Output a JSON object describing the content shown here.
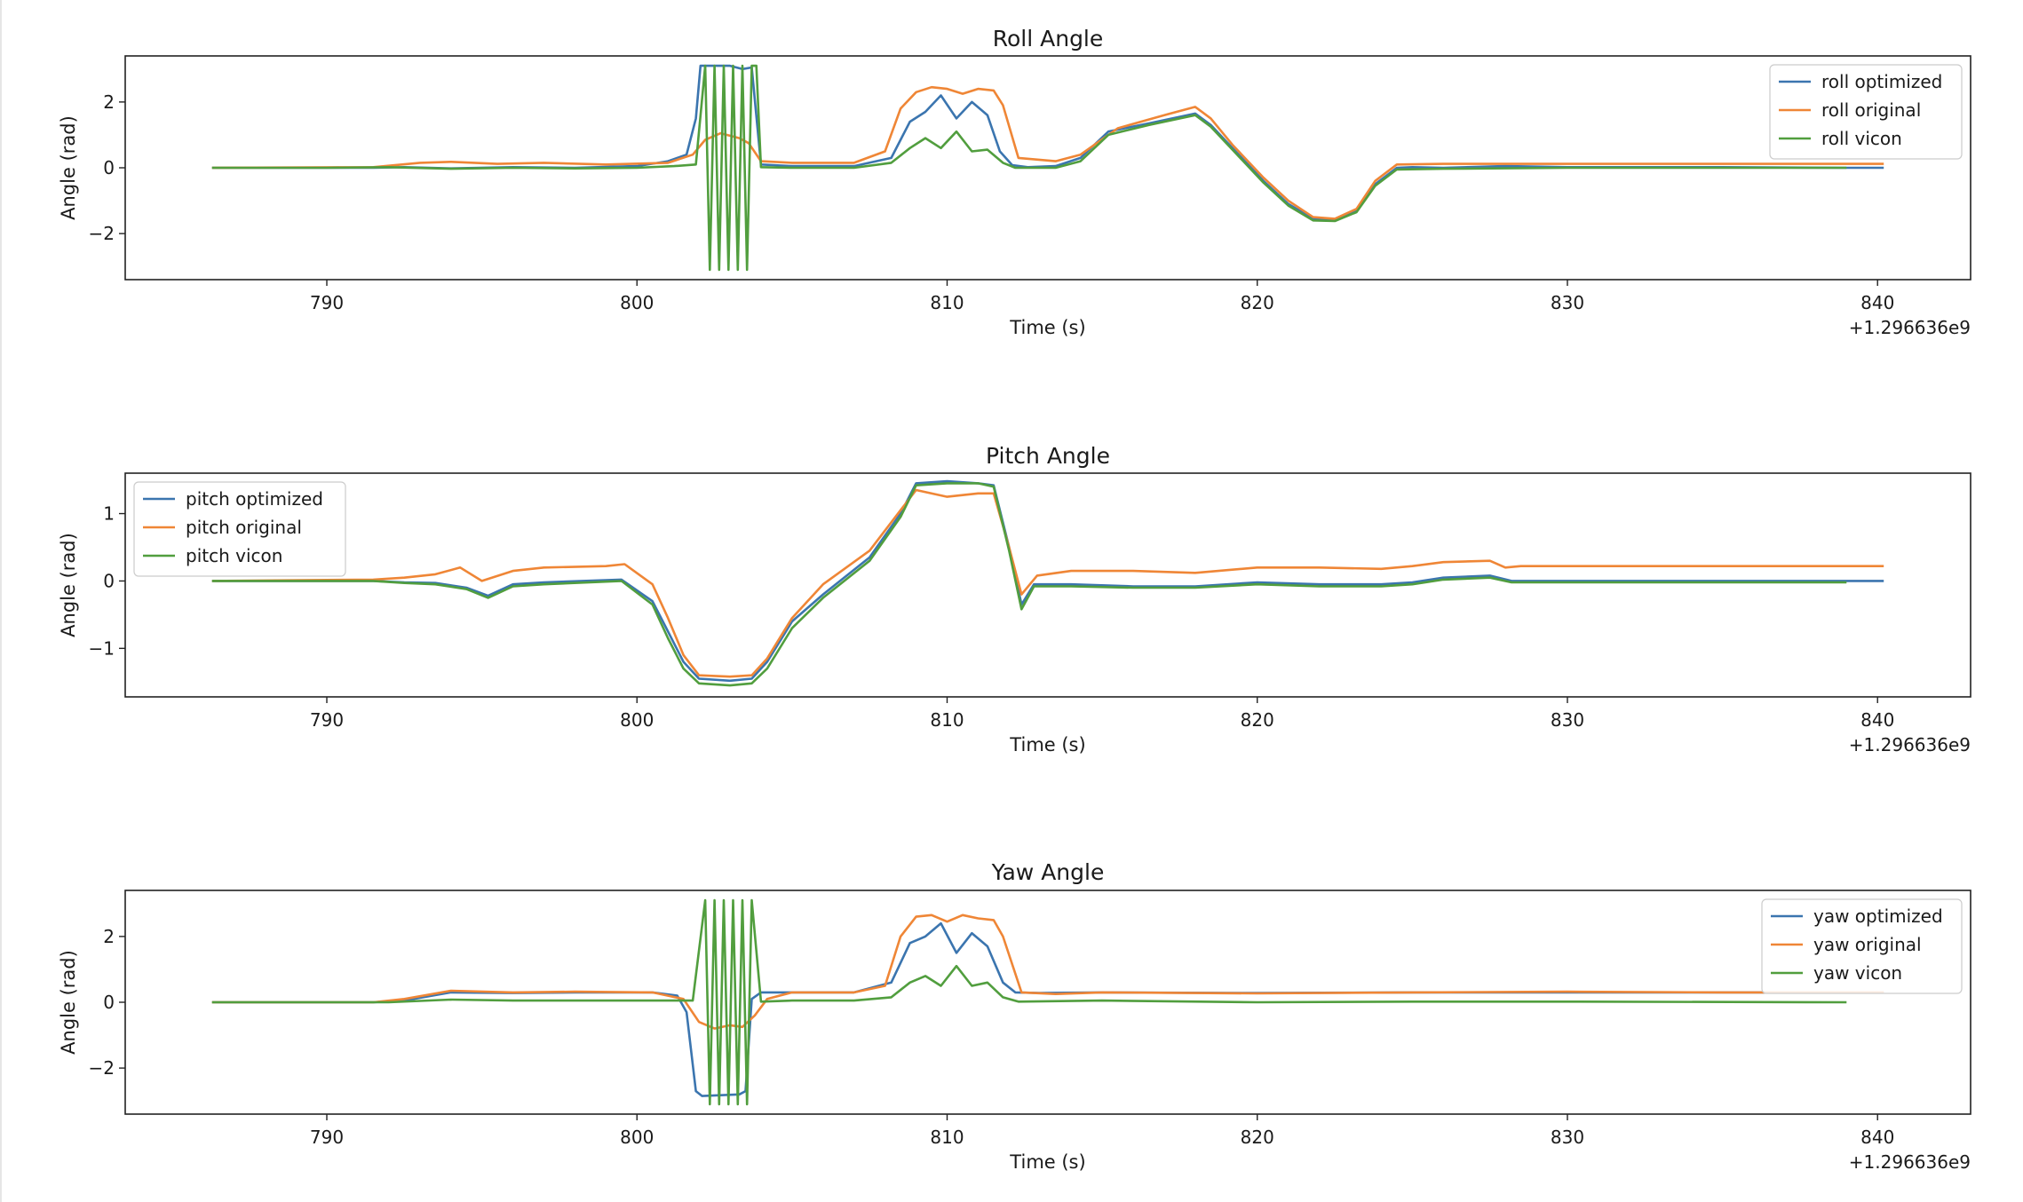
{
  "figure": {
    "x_offset_label": "+1.296636e9"
  },
  "colors": {
    "optimized": "#3b75af",
    "original": "#ef8636",
    "vicon": "#519e3e"
  },
  "chart_data": [
    {
      "type": "line",
      "title": "Roll Angle",
      "xlabel": "Time (s)",
      "ylabel": "Angle (rad)",
      "xlim": [
        783.5,
        843.0
      ],
      "ylim": [
        -3.4,
        3.4
      ],
      "xticks": [
        790,
        800,
        810,
        820,
        830,
        840
      ],
      "yticks": [
        {
          "v": 2,
          "label": "2"
        },
        {
          "v": 0,
          "label": "0"
        },
        {
          "v": -2,
          "label": "−2"
        }
      ],
      "legend": "top-right",
      "series": [
        {
          "name": "roll optimized",
          "role": "optimized",
          "x": [
            786.3,
            790,
            791.5,
            792.5,
            794,
            796,
            798,
            800,
            801,
            801.6,
            801.9,
            802.05,
            802.2,
            803.0,
            803.4,
            803.7,
            804.0,
            805,
            807,
            808.2,
            808.8,
            809.3,
            809.8,
            810.3,
            810.8,
            811.3,
            811.7,
            812.1,
            812.6,
            813.5,
            814.3,
            815.2,
            816.5,
            818.0,
            818.5,
            819.2,
            820.2,
            821.0,
            821.8,
            822.5,
            823.2,
            823.8,
            824.5,
            825.0,
            826.0,
            828.0,
            830.0,
            835.0,
            839.0,
            840.2
          ],
          "y": [
            0,
            0,
            0,
            0.02,
            -0.02,
            0.02,
            0,
            0.05,
            0.2,
            0.4,
            1.5,
            3.1,
            3.1,
            3.1,
            3.0,
            3.05,
            0.1,
            0.05,
            0.05,
            0.3,
            1.4,
            1.7,
            2.2,
            1.5,
            2.0,
            1.6,
            0.5,
            0.08,
            0.02,
            0.05,
            0.3,
            1.1,
            1.35,
            1.65,
            1.3,
            0.6,
            -0.4,
            -1.1,
            -1.55,
            -1.58,
            -1.3,
            -0.5,
            0,
            0.02,
            0,
            0.05,
            0.02,
            0.02,
            0,
            0
          ]
        },
        {
          "name": "roll original",
          "role": "original",
          "x": [
            786.3,
            791.5,
            793.0,
            794,
            795.5,
            797,
            799,
            801,
            801.8,
            802.2,
            802.7,
            803.3,
            803.6,
            804.0,
            805,
            807,
            808.0,
            808.5,
            809.0,
            809.5,
            810.0,
            810.5,
            811.0,
            811.5,
            811.8,
            812.3,
            813.5,
            814.3,
            815.5,
            817.0,
            818.0,
            818.5,
            819.2,
            820.2,
            821.0,
            821.8,
            822.5,
            823.2,
            823.8,
            824.5,
            826.0,
            830.0,
            835.0,
            840.2
          ],
          "y": [
            0,
            0.02,
            0.15,
            0.18,
            0.12,
            0.15,
            0.1,
            0.15,
            0.4,
            0.85,
            1.05,
            0.9,
            0.75,
            0.2,
            0.15,
            0.15,
            0.5,
            1.8,
            2.3,
            2.45,
            2.4,
            2.25,
            2.4,
            2.35,
            1.9,
            0.3,
            0.2,
            0.4,
            1.2,
            1.6,
            1.85,
            1.5,
            0.7,
            -0.3,
            -1.0,
            -1.5,
            -1.55,
            -1.25,
            -0.4,
            0.1,
            0.12,
            0.12,
            0.12,
            0.12
          ]
        },
        {
          "name": "roll vicon",
          "role": "vicon",
          "x": [
            786.3,
            790,
            792,
            794,
            796,
            798,
            800,
            801.2,
            801.9,
            802.2,
            802.35,
            802.5,
            802.65,
            802.8,
            802.95,
            803.1,
            803.25,
            803.4,
            803.55,
            803.7,
            803.85,
            804.0,
            805,
            807,
            808.2,
            808.8,
            809.3,
            809.8,
            810.3,
            810.8,
            811.3,
            811.8,
            812.2,
            813.5,
            814.3,
            815.2,
            816.5,
            818.0,
            818.5,
            819.2,
            820.2,
            821.0,
            821.8,
            822.5,
            823.2,
            823.8,
            824.5,
            826,
            830,
            835,
            839.0
          ],
          "y": [
            0,
            0,
            0.02,
            -0.03,
            0,
            -0.02,
            0,
            0.05,
            0.1,
            3.1,
            -3.1,
            3.1,
            -3.1,
            3.1,
            -3.1,
            3.1,
            -3.1,
            3.1,
            -3.1,
            3.1,
            3.1,
            0.02,
            0,
            0,
            0.15,
            0.6,
            0.9,
            0.6,
            1.1,
            0.5,
            0.55,
            0.15,
            0,
            0,
            0.2,
            1.0,
            1.3,
            1.6,
            1.25,
            0.55,
            -0.45,
            -1.15,
            -1.6,
            -1.62,
            -1.35,
            -0.55,
            -0.05,
            -0.03,
            0,
            0,
            0
          ]
        }
      ]
    },
    {
      "type": "line",
      "title": "Pitch Angle",
      "xlabel": "Time (s)",
      "ylabel": "Angle (rad)",
      "xlim": [
        783.5,
        843.0
      ],
      "ylim": [
        -1.72,
        1.6
      ],
      "xticks": [
        790,
        800,
        810,
        820,
        830,
        840
      ],
      "yticks": [
        {
          "v": 1,
          "label": "1"
        },
        {
          "v": 0,
          "label": "0"
        },
        {
          "v": -1,
          "label": "−1"
        }
      ],
      "legend": "top-left",
      "series": [
        {
          "name": "pitch optimized",
          "role": "optimized",
          "x": [
            786.3,
            791.5,
            792.5,
            793.5,
            794.5,
            795.2,
            796,
            797,
            799.5,
            800.5,
            801.0,
            801.5,
            802.0,
            803.0,
            803.7,
            804.2,
            805.0,
            806.0,
            807.5,
            808.5,
            809.0,
            810.0,
            811.0,
            811.5,
            812.0,
            812.4,
            812.8,
            814.0,
            816.0,
            818.0,
            820.0,
            822.0,
            824.0,
            825.0,
            826.0,
            827.5,
            828.2,
            830.0,
            840.2
          ],
          "y": [
            0,
            0,
            -0.02,
            -0.03,
            -0.1,
            -0.22,
            -0.05,
            -0.02,
            0.02,
            -0.3,
            -0.75,
            -1.2,
            -1.45,
            -1.48,
            -1.45,
            -1.2,
            -0.6,
            -0.2,
            0.35,
            1.0,
            1.45,
            1.48,
            1.45,
            1.42,
            0.5,
            -0.35,
            -0.05,
            -0.05,
            -0.08,
            -0.08,
            -0.02,
            -0.05,
            -0.05,
            -0.02,
            0.05,
            0.08,
            0,
            0,
            0
          ]
        },
        {
          "name": "pitch original",
          "role": "original",
          "x": [
            786.3,
            791.5,
            792.5,
            793.5,
            794.3,
            795.0,
            796.0,
            797.0,
            799.0,
            799.6,
            800.5,
            801.0,
            801.5,
            802.0,
            803.0,
            803.7,
            804.2,
            805.0,
            806.0,
            807.5,
            808.5,
            809.0,
            810.0,
            811.0,
            811.5,
            812.0,
            812.4,
            812.9,
            814.0,
            816.0,
            818.0,
            820.0,
            822.0,
            824.0,
            825.0,
            826.0,
            827.5,
            828.0,
            828.5,
            830.0,
            840.2
          ],
          "y": [
            0,
            0.02,
            0.05,
            0.1,
            0.2,
            0,
            0.15,
            0.2,
            0.22,
            0.25,
            -0.05,
            -0.55,
            -1.1,
            -1.4,
            -1.42,
            -1.4,
            -1.15,
            -0.55,
            -0.05,
            0.45,
            1.05,
            1.35,
            1.25,
            1.3,
            1.3,
            0.5,
            -0.2,
            0.08,
            0.15,
            0.15,
            0.12,
            0.2,
            0.2,
            0.18,
            0.22,
            0.28,
            0.3,
            0.2,
            0.22,
            0.22,
            0.22
          ]
        },
        {
          "name": "pitch vicon",
          "role": "vicon",
          "x": [
            786.3,
            791.5,
            792.5,
            793.5,
            794.5,
            795.2,
            796,
            797,
            799.5,
            800.5,
            801.0,
            801.5,
            802.0,
            803.0,
            803.7,
            804.2,
            805.0,
            806.0,
            807.5,
            808.5,
            809.0,
            810.0,
            811.0,
            811.5,
            812.0,
            812.4,
            812.8,
            814.0,
            816.0,
            818.0,
            820.0,
            822.0,
            824.0,
            825.0,
            826.0,
            827.5,
            828.2,
            830.0,
            839.0
          ],
          "y": [
            0,
            0,
            -0.03,
            -0.05,
            -0.12,
            -0.25,
            -0.08,
            -0.05,
            0.0,
            -0.35,
            -0.85,
            -1.3,
            -1.52,
            -1.55,
            -1.52,
            -1.3,
            -0.7,
            -0.25,
            0.3,
            0.95,
            1.42,
            1.45,
            1.45,
            1.4,
            0.45,
            -0.42,
            -0.08,
            -0.08,
            -0.1,
            -0.1,
            -0.05,
            -0.08,
            -0.08,
            -0.05,
            0.02,
            0.05,
            -0.02,
            -0.02,
            -0.02
          ]
        }
      ]
    },
    {
      "type": "line",
      "title": "Yaw Angle",
      "xlabel": "Time (s)",
      "ylabel": "Angle (rad)",
      "xlim": [
        783.5,
        843.0
      ],
      "ylim": [
        -3.4,
        3.4
      ],
      "xticks": [
        790,
        800,
        810,
        820,
        830,
        840
      ],
      "yticks": [
        {
          "v": 2,
          "label": "2"
        },
        {
          "v": 0,
          "label": "0"
        },
        {
          "v": -2,
          "label": "−2"
        }
      ],
      "legend": "top-right",
      "series": [
        {
          "name": "yaw optimized",
          "role": "optimized",
          "x": [
            786.3,
            791.5,
            792.5,
            794.0,
            796.0,
            798.0,
            800.5,
            801.3,
            801.6,
            801.9,
            802.1,
            803.3,
            803.5,
            803.7,
            804.0,
            805.0,
            807.0,
            808.2,
            808.8,
            809.3,
            809.8,
            810.3,
            810.8,
            811.3,
            811.8,
            812.2,
            813.0,
            815.0,
            820.0,
            825.0,
            830.0,
            835.0,
            840.2
          ],
          "y": [
            0,
            0,
            0.05,
            0.3,
            0.28,
            0.3,
            0.3,
            0.2,
            -0.3,
            -2.7,
            -2.85,
            -2.8,
            -2.7,
            0.1,
            0.3,
            0.3,
            0.3,
            0.6,
            1.8,
            2.0,
            2.4,
            1.5,
            2.1,
            1.7,
            0.6,
            0.3,
            0.28,
            0.3,
            0.28,
            0.3,
            0.3,
            0.3,
            0.3
          ]
        },
        {
          "name": "yaw original",
          "role": "original",
          "x": [
            786.3,
            791.5,
            792.5,
            794.0,
            796.0,
            798.0,
            800.5,
            801.5,
            802.0,
            802.5,
            803.0,
            803.4,
            803.8,
            804.2,
            805.0,
            807.0,
            808.0,
            808.5,
            809.0,
            809.5,
            810.0,
            810.5,
            811.0,
            811.5,
            811.8,
            812.4,
            813.5,
            815.0,
            820.0,
            825.0,
            830.0,
            835.0,
            840.2
          ],
          "y": [
            0,
            0,
            0.1,
            0.35,
            0.3,
            0.32,
            0.3,
            0.1,
            -0.6,
            -0.8,
            -0.7,
            -0.75,
            -0.4,
            0.1,
            0.3,
            0.3,
            0.5,
            2.0,
            2.6,
            2.65,
            2.45,
            2.65,
            2.55,
            2.5,
            2.0,
            0.3,
            0.25,
            0.3,
            0.27,
            0.3,
            0.32,
            0.3,
            0.3
          ]
        },
        {
          "name": "yaw vicon",
          "role": "vicon",
          "x": [
            786.3,
            792.0,
            794.0,
            796.0,
            800.5,
            801.8,
            802.2,
            802.35,
            802.5,
            802.65,
            802.8,
            802.95,
            803.1,
            803.25,
            803.4,
            803.55,
            803.7,
            804.0,
            805.0,
            807.0,
            808.2,
            808.8,
            809.3,
            809.8,
            810.3,
            810.8,
            811.3,
            811.8,
            812.3,
            815.0,
            820.0,
            825.0,
            830.0,
            839.0
          ],
          "y": [
            0,
            0,
            0.08,
            0.05,
            0.05,
            0.05,
            3.1,
            -3.1,
            3.1,
            -3.1,
            3.1,
            -3.1,
            3.1,
            -3.1,
            3.1,
            -3.1,
            3.1,
            0.02,
            0.05,
            0.05,
            0.15,
            0.6,
            0.8,
            0.5,
            1.1,
            0.5,
            0.6,
            0.15,
            0.02,
            0.05,
            0.0,
            0.02,
            0.02,
            0.0
          ]
        }
      ]
    }
  ]
}
